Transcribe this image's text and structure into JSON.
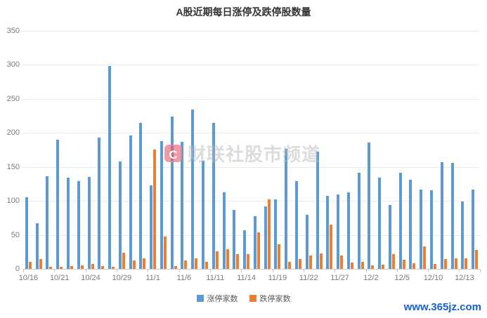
{
  "title": "A股近期每日涨停及跌停股数量",
  "watermark": {
    "logo_letter": "C",
    "text": "财联社股市频道"
  },
  "footer_link": "www.365jz.com",
  "legend": [
    {
      "label": "涨停家数",
      "color": "#5B9BD5"
    },
    {
      "label": "跌停家数",
      "color": "#ED7D31"
    }
  ],
  "chart_data": {
    "type": "bar",
    "title": "A股近期每日涨停及跌停股数量",
    "categories": [
      "10/16",
      "10/17",
      "10/18",
      "10/21",
      "10/22",
      "10/23",
      "10/24",
      "10/25",
      "10/28",
      "10/29",
      "10/30",
      "10/31",
      "11/1",
      "11/4",
      "11/5",
      "11/6",
      "11/7",
      "11/8",
      "11/11",
      "11/12",
      "11/13",
      "11/14",
      "11/15",
      "11/18",
      "11/19",
      "11/20",
      "11/21",
      "11/22",
      "11/25",
      "11/26",
      "11/27",
      "11/28",
      "11/29",
      "12/2",
      "12/3",
      "12/4",
      "12/5",
      "12/6",
      "12/9",
      "12/10",
      "12/11",
      "12/12",
      "12/13",
      "12/16"
    ],
    "x_tick_labels": [
      "10/16",
      "10/21",
      "10/24",
      "10/29",
      "11/1",
      "11/6",
      "11/11",
      "11/14",
      "11/19",
      "11/22",
      "11/27",
      "12/2",
      "12/5",
      "12/10",
      "12/13"
    ],
    "x_label_every": 3,
    "series": [
      {
        "name": "涨停家数",
        "color": "#5B9BD5",
        "values": [
          105,
          67,
          136,
          190,
          134,
          129,
          135,
          193,
          298,
          158,
          196,
          215,
          123,
          188,
          224,
          187,
          234,
          159,
          215,
          113,
          87,
          57,
          77,
          92,
          102,
          177,
          129,
          79,
          172,
          107,
          109,
          113,
          141,
          186,
          134,
          94,
          141,
          131,
          117,
          116,
          157,
          156,
          99,
          117
        ]
      },
      {
        "name": "跌停家数",
        "color": "#ED7D31",
        "values": [
          10,
          14,
          3,
          3,
          4,
          5,
          7,
          4,
          3,
          24,
          12,
          15,
          176,
          47,
          4,
          12,
          15,
          10,
          26,
          29,
          22,
          22,
          54,
          102,
          36,
          10,
          14,
          20,
          23,
          65,
          20,
          9,
          10,
          5,
          6,
          22,
          13,
          8,
          33,
          7,
          14,
          15,
          16,
          28
        ]
      }
    ],
    "ylim": [
      0,
      350
    ],
    "y_ticks": [
      0,
      50,
      100,
      150,
      200,
      250,
      300,
      350
    ],
    "grid": true,
    "legend_position": "bottom"
  }
}
